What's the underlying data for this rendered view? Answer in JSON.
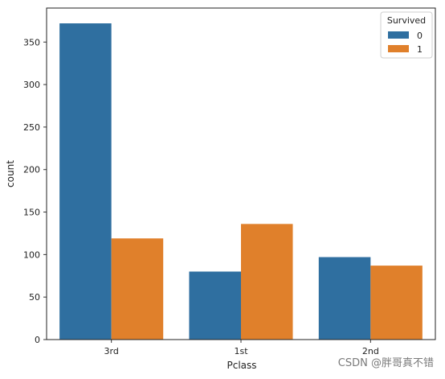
{
  "chart_data": {
    "type": "bar",
    "categories": [
      "3rd",
      "1st",
      "2nd"
    ],
    "series": [
      {
        "name": "0",
        "values": [
          372,
          80,
          97
        ],
        "color": "#2f6fa0"
      },
      {
        "name": "1",
        "values": [
          119,
          136,
          87
        ],
        "color": "#e0802b"
      }
    ],
    "xlabel": "Pclass",
    "ylabel": "count",
    "yticks": [
      0,
      50,
      100,
      150,
      200,
      250,
      300,
      350
    ],
    "ylim": [
      0,
      390
    ],
    "legend": {
      "title": "Survived",
      "placement": "top-right"
    },
    "grid": false
  },
  "watermark": {
    "text": "CSDN @胖哥真不错"
  }
}
